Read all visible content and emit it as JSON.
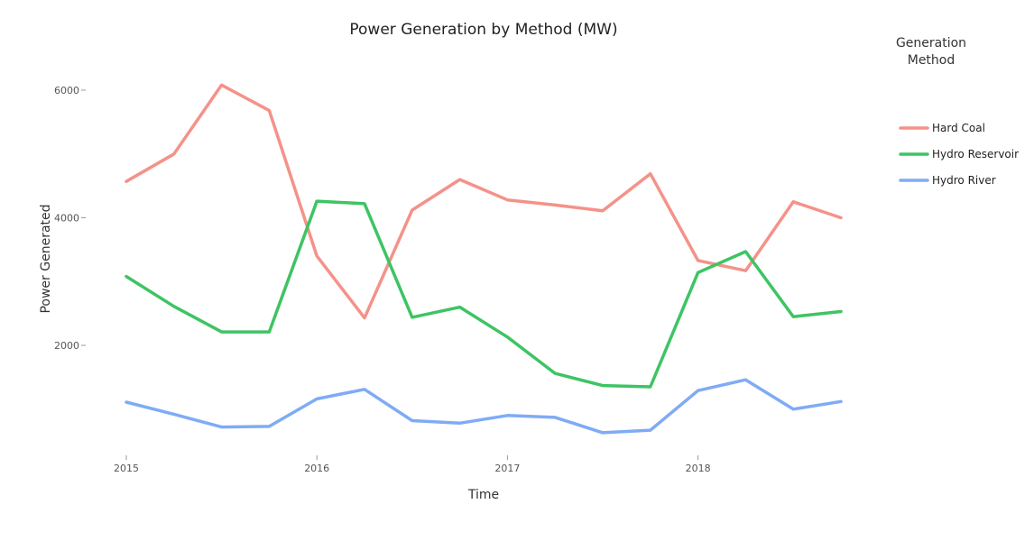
{
  "chart_data": {
    "type": "line",
    "title": "Power Generation by Method (MW)",
    "xlabel": "Time",
    "ylabel": "Power Generated",
    "legend_title": [
      "Generation",
      "Method"
    ],
    "x": [
      "2015-01-01",
      "2015-04-01",
      "2015-07-01",
      "2015-10-01",
      "2016-01-01",
      "2016-04-01",
      "2016-07-01",
      "2016-10-01",
      "2017-01-01",
      "2017-04-01",
      "2017-07-01",
      "2017-10-01",
      "2018-01-01",
      "2018-04-01",
      "2018-07-01",
      "2018-10-01"
    ],
    "xticks": [
      "2015",
      "2016",
      "2017",
      "2018"
    ],
    "yticks": [
      2000,
      4000,
      6000
    ],
    "ylim": [
      300,
      6500
    ],
    "grid": false,
    "legend_position": "right",
    "series": [
      {
        "name": "Hard Coal",
        "color": "#f4928a",
        "values": [
          4570,
          5000,
          6080,
          5680,
          3400,
          2430,
          4120,
          4600,
          4280,
          4200,
          4110,
          4690,
          3330,
          3170,
          4250,
          4000
        ]
      },
      {
        "name": "Hydro Reservoir",
        "color": "#3ec463",
        "values": [
          3080,
          2610,
          2210,
          2210,
          4260,
          4220,
          2440,
          2600,
          2130,
          1560,
          1370,
          1350,
          3140,
          3470,
          2450,
          2530
        ]
      },
      {
        "name": "Hydro River",
        "color": "#7fabf6",
        "values": [
          1110,
          920,
          720,
          730,
          1160,
          1310,
          820,
          780,
          900,
          870,
          630,
          670,
          1290,
          1460,
          1000,
          1120
        ]
      }
    ]
  }
}
